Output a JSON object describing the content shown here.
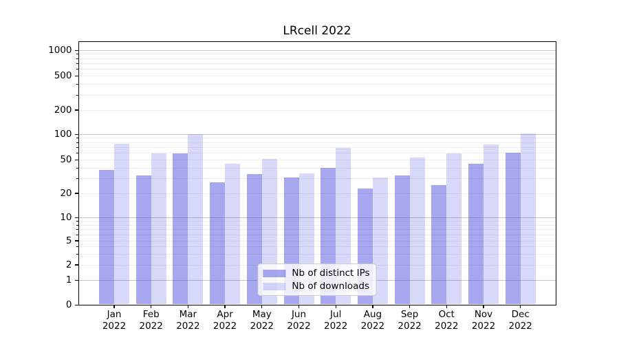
{
  "title": "LRcell 2022",
  "chart_data": {
    "type": "bar",
    "title": "LRcell 2022",
    "categories": [
      "Jan",
      "Feb",
      "Mar",
      "Apr",
      "May",
      "Jun",
      "Jul",
      "Aug",
      "Sep",
      "Oct",
      "Nov",
      "Dec"
    ],
    "year_label": "2022",
    "series": [
      {
        "name": "Nb of distinct IPs",
        "color": "rgba(60,60,220,0.45)",
        "values": [
          38,
          33,
          60,
          27,
          34,
          31,
          40,
          23,
          33,
          25,
          45,
          61
        ]
      },
      {
        "name": "Nb of downloads",
        "color": "rgba(60,60,220,0.2)",
        "values": [
          77,
          60,
          100,
          45,
          52,
          35,
          70,
          31,
          54,
          60,
          76,
          102
        ]
      }
    ],
    "xlabel": "",
    "ylabel": "",
    "y_scale": "symlog",
    "y_ticks": [
      0,
      1,
      2,
      5,
      10,
      20,
      50,
      100,
      200,
      500,
      1000
    ],
    "ylim": [
      0,
      1300
    ],
    "grid": "horizontal major and minor gridlines",
    "legend_position": "lower center",
    "spine_color": "#000000",
    "major_grid_color": "#c6c6c6",
    "minor_grid_color": "#ededed"
  }
}
